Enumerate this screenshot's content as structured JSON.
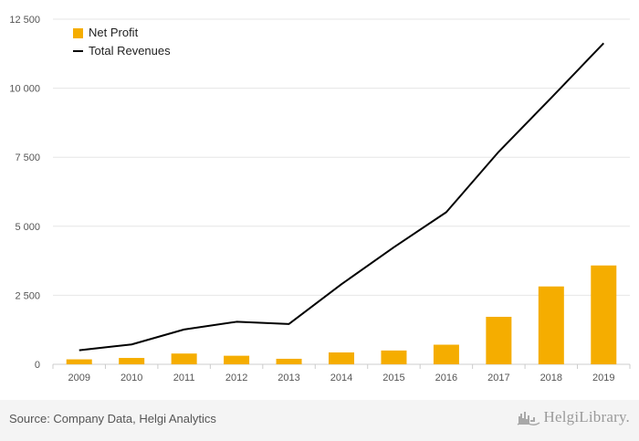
{
  "chart_data": {
    "type": "bar",
    "categories": [
      "2009",
      "2010",
      "2011",
      "2012",
      "2013",
      "2014",
      "2015",
      "2016",
      "2017",
      "2018",
      "2019"
    ],
    "series": [
      {
        "name": "Net Profit",
        "type": "bar",
        "color": "#f5ad00",
        "values": [
          180,
          230,
          390,
          310,
          200,
          430,
          500,
          710,
          1720,
          2820,
          3580
        ]
      },
      {
        "name": "Total Revenues",
        "type": "line",
        "color": "#000000",
        "values": [
          510,
          720,
          1260,
          1540,
          1460,
          2900,
          4240,
          5510,
          7700,
          9650,
          11630
        ]
      }
    ],
    "yticks": [
      0,
      2500,
      5000,
      7500,
      10000,
      12500
    ],
    "ytick_labels": [
      "0",
      "2 500",
      "5 000",
      "7 500",
      "10 000",
      "12 500"
    ],
    "ylim": [
      0,
      12500
    ],
    "grid": true,
    "legend_position": "top-left"
  },
  "footer": {
    "source": "Source: Company Data, Helgi Analytics",
    "brand": "HelgiLibrary.",
    "brand_icon": "helgi-logo-icon"
  }
}
